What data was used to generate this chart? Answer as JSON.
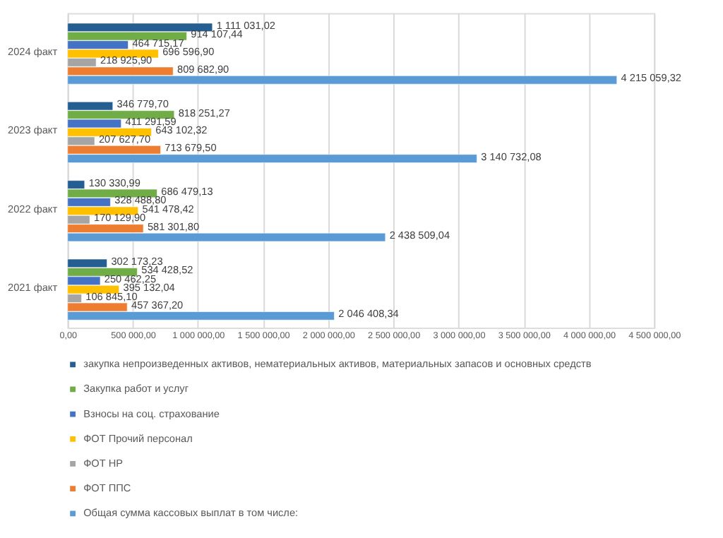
{
  "chart_data": {
    "type": "bar",
    "orientation": "horizontal",
    "categories": [
      "2024 факт",
      "2023 факт",
      "2022 факт",
      "2021 факт"
    ],
    "xlim": [
      0,
      4500000
    ],
    "xticks": [
      {
        "value": 0,
        "label": "0,00"
      },
      {
        "value": 500000,
        "label": "500 000,00"
      },
      {
        "value": 1000000,
        "label": "1 000 000,00"
      },
      {
        "value": 1500000,
        "label": "1 500 000,00"
      },
      {
        "value": 2000000,
        "label": "2 000 000,00"
      },
      {
        "value": 2500000,
        "label": "2 500 000,00"
      },
      {
        "value": 3000000,
        "label": "3 000 000,00"
      },
      {
        "value": 3500000,
        "label": "3 500 000,00"
      },
      {
        "value": 4000000,
        "label": "4 000 000,00"
      },
      {
        "value": 4500000,
        "label": "4 500 000,00"
      }
    ],
    "grid": "x",
    "legend": "bottom",
    "series": [
      {
        "name": "закупка непроизведенных активов, нематериальных активов, материальных запасов и основных средств",
        "color": "#255e91",
        "values": [
          1111031.02,
          346779.7,
          130330.99,
          302173.23
        ],
        "value_labels": [
          "1 111 031,02",
          "346 779,70",
          "130 330,99",
          "302 173,23"
        ]
      },
      {
        "name": "Закупка работ и услуг",
        "color": "#70ad47",
        "values": [
          914107.44,
          818251.27,
          686479.13,
          534428.52
        ],
        "value_labels": [
          "914 107,44",
          "818 251,27",
          "686 479,13",
          "534 428,52"
        ]
      },
      {
        "name": "Взносы на соц. страхование",
        "color": "#4472c4",
        "values": [
          464715.17,
          411291.59,
          328488.8,
          250462.25
        ],
        "value_labels": [
          "464 715,17",
          "411 291,59",
          "328 488,80",
          "250 462,25"
        ]
      },
      {
        "name": "ФОТ Прочий персонал",
        "color": "#ffc000",
        "values": [
          696596.9,
          643102.32,
          541478.42,
          395132.04
        ],
        "value_labels": [
          "696 596,90",
          "643 102,32",
          "541 478,42",
          "395 132,04"
        ]
      },
      {
        "name": "ФОТ НР",
        "color": "#a5a5a5",
        "values": [
          218925.9,
          207627.7,
          170129.9,
          106845.1
        ],
        "value_labels": [
          "218 925,90",
          "207 627,70",
          "170 129,90",
          "106 845,10"
        ]
      },
      {
        "name": "ФОТ ППС",
        "color": "#ed7d31",
        "values": [
          809682.9,
          713679.5,
          581301.8,
          457367.2
        ],
        "value_labels": [
          "809 682,90",
          "713 679,50",
          "581 301,80",
          "457 367,20"
        ]
      },
      {
        "name": "Общая сумма кассовых выплат в том числе:",
        "color": "#5b9bd5",
        "values": [
          4215059.32,
          3140732.08,
          2438509.04,
          2046408.34
        ],
        "value_labels": [
          "4 215 059,32",
          "3 140 732,08",
          "2 438 509,04",
          "2 046 408,34"
        ]
      }
    ]
  }
}
